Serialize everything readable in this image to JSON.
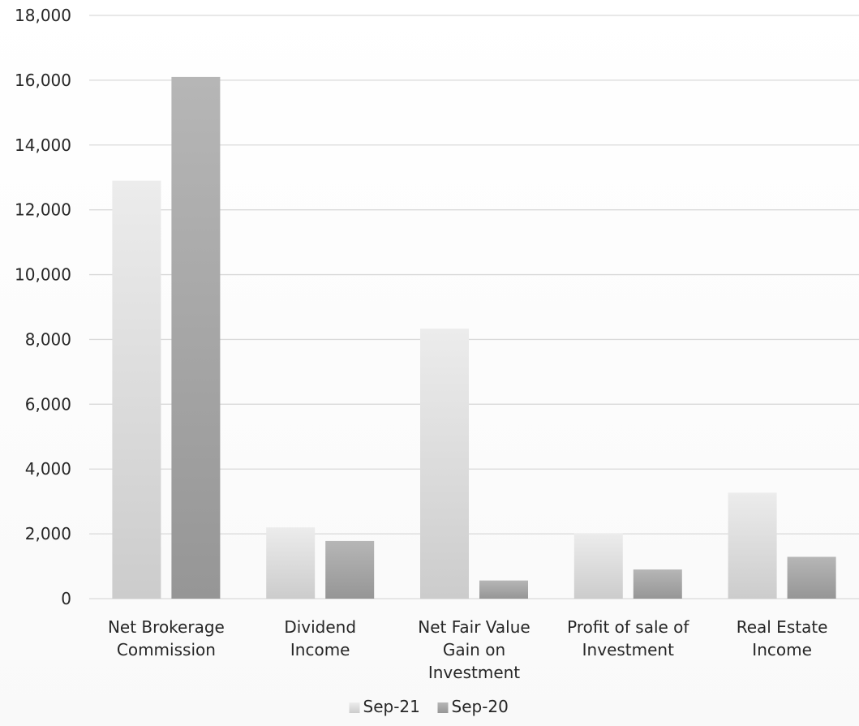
{
  "chart_data": {
    "type": "bar",
    "title": "",
    "xlabel": "",
    "ylabel": "",
    "categories": [
      [
        "Net Brokerage",
        "Commission"
      ],
      [
        "Dividend",
        "Income"
      ],
      [
        "Net Fair Value",
        "Gain on",
        "Investment"
      ],
      [
        "Profit of sale of",
        "Investment"
      ],
      [
        "Real Estate",
        "Income"
      ]
    ],
    "series": [
      {
        "name": "Sep-21",
        "values": [
          12900,
          2200,
          8330,
          2020,
          3270
        ],
        "color_top": "#ececec",
        "color_bottom": "#cccccc"
      },
      {
        "name": "Sep-20",
        "values": [
          16100,
          1780,
          560,
          900,
          1290
        ],
        "color_top": "#b6b6b6",
        "color_bottom": "#969696"
      }
    ],
    "ylim": [
      0,
      18000
    ],
    "yticks": [
      0,
      2000,
      4000,
      6000,
      8000,
      10000,
      12000,
      14000,
      16000,
      18000
    ],
    "ytick_labels": [
      "0",
      "2,000",
      "4,000",
      "6,000",
      "8,000",
      "10,000",
      "12,000",
      "14,000",
      "16,000",
      "18,000"
    ],
    "grid": true,
    "legend_position": "bottom"
  }
}
